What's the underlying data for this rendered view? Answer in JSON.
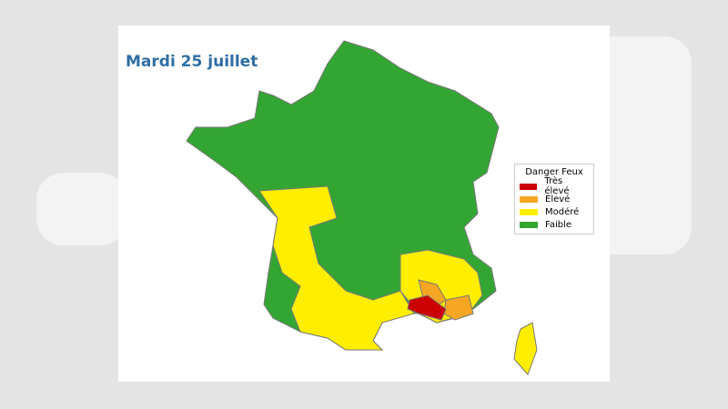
{
  "title": "Mardi 25 juillet",
  "legend": {
    "title": "Danger Feux",
    "items": [
      {
        "label": "Très élevé",
        "color": "#cc0000"
      },
      {
        "label": "Elevé",
        "color": "#f5a623"
      },
      {
        "label": "Modéré",
        "color": "#ffee00"
      },
      {
        "label": "Faible",
        "color": "#33a532"
      }
    ]
  }
}
